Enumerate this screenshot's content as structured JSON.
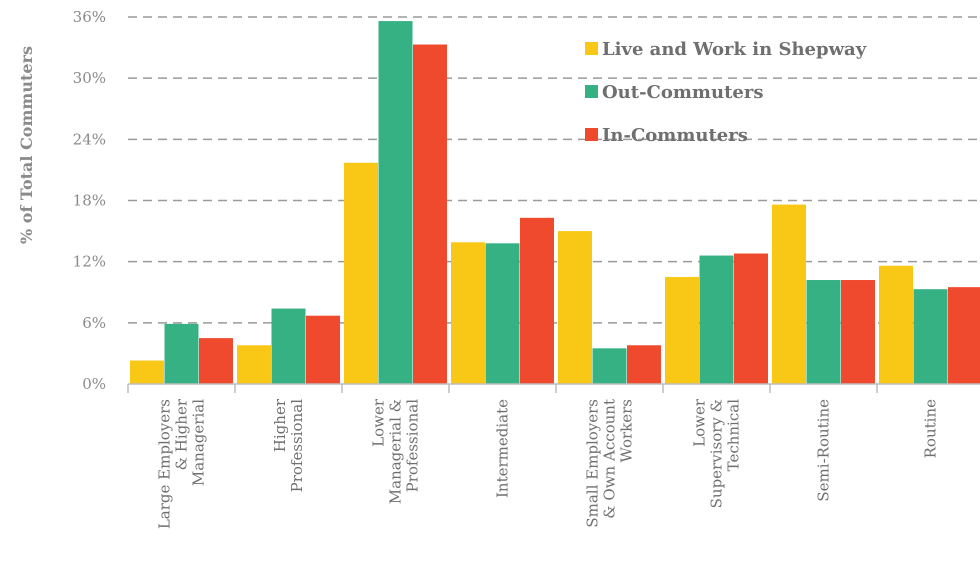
{
  "chart_data": {
    "type": "bar",
    "ylabel": "% of Total Commuters",
    "xlabel": "",
    "ylim": [
      0,
      36
    ],
    "yticks": [
      "0%",
      "6%",
      "12%",
      "18%",
      "24%",
      "30%",
      "36%"
    ],
    "grid": true,
    "legend_position": "top-right",
    "categories": [
      [
        "Large Employers",
        "& Higher",
        "Managerial"
      ],
      [
        "Higher",
        "Professional"
      ],
      [
        "Lower",
        "Managerial &",
        "Professional"
      ],
      [
        "Intermediate"
      ],
      [
        "Small Employers",
        "& Own Account",
        "Workers"
      ],
      [
        "Lower",
        "Supervisory &",
        "Technical"
      ],
      [
        "Semi-Routine"
      ],
      [
        "Routine"
      ]
    ],
    "series": [
      {
        "name": "Live and Work in Shepway",
        "color": "#f9c716",
        "values": [
          2.3,
          3.8,
          21.7,
          13.9,
          15.0,
          10.5,
          17.6,
          11.6
        ]
      },
      {
        "name": "Out-Commuters",
        "color": "#35b184",
        "values": [
          5.9,
          7.4,
          35.6,
          13.8,
          3.5,
          12.6,
          10.2,
          9.3
        ]
      },
      {
        "name": "In-Commuters",
        "color": "#ef4a2d",
        "values": [
          4.5,
          6.7,
          33.3,
          16.3,
          3.8,
          12.8,
          10.2,
          9.5
        ]
      }
    ]
  }
}
